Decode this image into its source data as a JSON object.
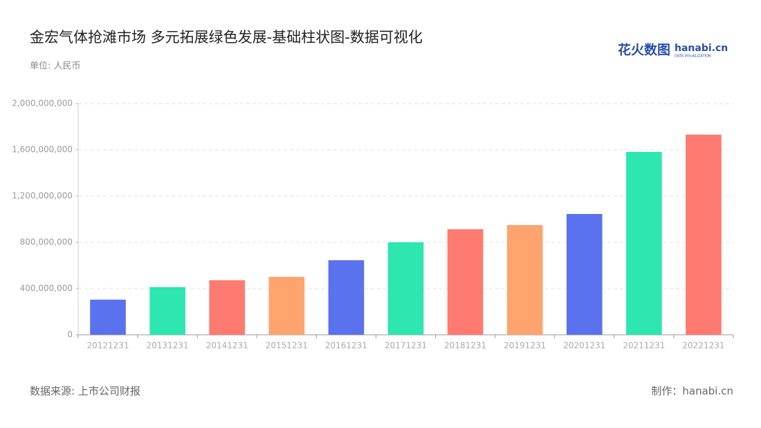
{
  "chart_data": {
    "type": "bar",
    "title": "金宏气体抢滩市场 多元拓展绿色发展-基础柱状图-数据可视化",
    "subtitle": "单位: 人民币",
    "source": "数据来源: 上市公司财报",
    "credit": "制作：hanabi.cn",
    "logo": {
      "name": "花火数图",
      "site": "hanabi.cn",
      "tagline": "DATA VISUALIZATION"
    },
    "categories": [
      "20121231",
      "20131231",
      "20141231",
      "20151231",
      "20161231",
      "20171231",
      "20181231",
      "20191231",
      "20201231",
      "20211231",
      "20221231"
    ],
    "values": [
      304000000,
      412000000,
      472000000,
      501000000,
      645000000,
      800000000,
      913000000,
      949000000,
      1045000000,
      1582000000,
      1731000000
    ],
    "colors": [
      "#5b72ee",
      "#2ee6b0",
      "#ff7a70",
      "#ffa36f",
      "#5b72ee",
      "#2ee6b0",
      "#ff7a70",
      "#ffa36f",
      "#5b72ee",
      "#2ee6b0",
      "#ff7a70"
    ],
    "ylim": [
      0,
      2000000000
    ],
    "yticks": [
      0,
      {
        "value": 400000000,
        "label": "400,000,000"
      },
      {
        "value": 800000000,
        "label": "800,000,000"
      },
      {
        "value": 1200000000,
        "label": "1,200,000,000"
      },
      {
        "value": 1600000000,
        "label": "1,600,000,000"
      },
      {
        "value": 2000000000,
        "label": "2,000,000,000"
      }
    ],
    "grid": true
  }
}
